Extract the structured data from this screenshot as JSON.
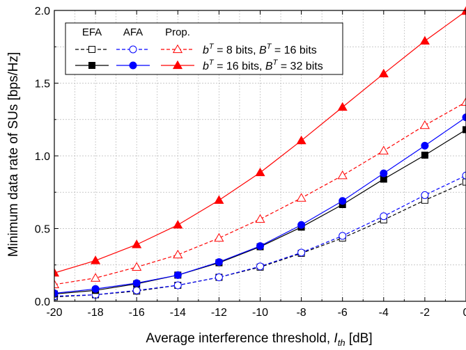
{
  "chart_data": {
    "type": "line",
    "xlabel_prefix": "Average interference threshold, ",
    "xlabel_var": "I",
    "xlabel_sub": "th",
    "xlabel_unit": " [dB]",
    "ylabel": "Minimum data rate of SUs [bps/Hz]",
    "xlim": [
      -20,
      0
    ],
    "ylim": [
      0,
      2.0
    ],
    "x_ticks": [
      -20,
      -18,
      -16,
      -14,
      -12,
      -10,
      -8,
      -6,
      -4,
      -2,
      0
    ],
    "x_tick_labels": [
      "-20",
      "-18",
      "-16",
      "-14",
      "-12",
      "-10",
      "-8",
      "-6",
      "-4",
      "-2",
      "0"
    ],
    "y_ticks": [
      0,
      0.5,
      1.0,
      1.5,
      2.0
    ],
    "y_tick_labels": [
      "0.0",
      "0.5",
      "1.0",
      "1.5",
      "2.0"
    ],
    "grid": true,
    "legend": {
      "position": "top-left",
      "headers": [
        "EFA",
        "AFA",
        "Prop."
      ],
      "row_labels": [
        {
          "b_val": " =  8 bits, ",
          "B_val": " = 16 bits"
        },
        {
          "b_val": " = 16 bits, ",
          "B_val": " = 32 bits"
        }
      ]
    },
    "x": [
      -20,
      -18,
      -16,
      -14,
      -12,
      -10,
      -8,
      -6,
      -4,
      -2,
      0
    ],
    "series": [
      {
        "scheme": "EFA",
        "case": "8/16",
        "color": "#000000",
        "dash": true,
        "marker": "square",
        "filled": false,
        "values": [
          0.03,
          0.045,
          0.07,
          0.11,
          0.165,
          0.235,
          0.33,
          0.435,
          0.56,
          0.695,
          0.82
        ]
      },
      {
        "scheme": "AFA",
        "case": "8/16",
        "color": "#0000ff",
        "dash": true,
        "marker": "circle",
        "filled": false,
        "values": [
          0.035,
          0.045,
          0.075,
          0.11,
          0.165,
          0.24,
          0.335,
          0.45,
          0.585,
          0.73,
          0.865
        ]
      },
      {
        "scheme": "Prop.",
        "case": "8/16",
        "color": "#ff0000",
        "dash": true,
        "marker": "triangle",
        "filled": false,
        "values": [
          0.115,
          0.16,
          0.235,
          0.32,
          0.435,
          0.565,
          0.71,
          0.865,
          1.035,
          1.21,
          1.37
        ]
      },
      {
        "scheme": "EFA",
        "case": "16/32",
        "color": "#000000",
        "dash": false,
        "marker": "square",
        "filled": true,
        "values": [
          0.05,
          0.075,
          0.12,
          0.18,
          0.265,
          0.375,
          0.51,
          0.665,
          0.84,
          1.005,
          1.18
        ]
      },
      {
        "scheme": "AFA",
        "case": "16/32",
        "color": "#0000ff",
        "dash": false,
        "marker": "circle",
        "filled": true,
        "values": [
          0.055,
          0.085,
          0.125,
          0.18,
          0.27,
          0.38,
          0.525,
          0.69,
          0.88,
          1.07,
          1.265
        ]
      },
      {
        "scheme": "Prop.",
        "case": "16/32",
        "color": "#ff0000",
        "dash": false,
        "marker": "triangle",
        "filled": true,
        "values": [
          0.195,
          0.28,
          0.39,
          0.525,
          0.695,
          0.885,
          1.105,
          1.335,
          1.565,
          1.79,
          1.995
        ]
      }
    ]
  }
}
